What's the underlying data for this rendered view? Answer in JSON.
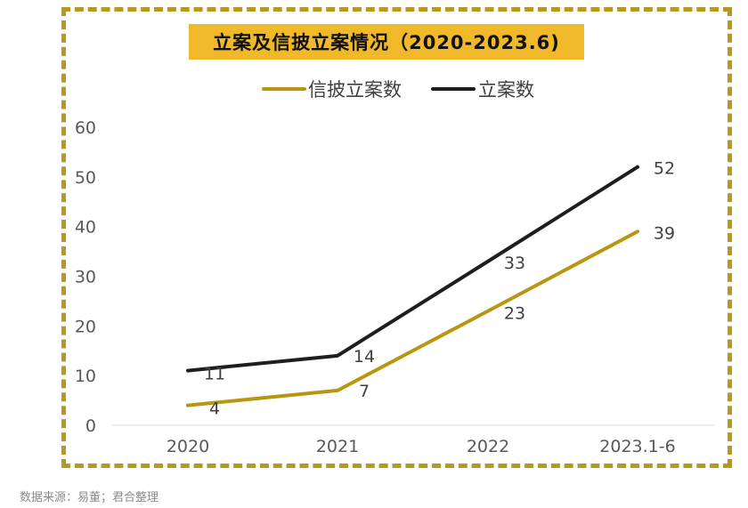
{
  "colors": {
    "frame": "#b8981e",
    "title_bg": "#f0b92a",
    "line_disclosure": "#b8960f",
    "line_total": "#1e1e1e",
    "axis_text": "#595959",
    "label_text": "#404040"
  },
  "chart_data": {
    "type": "line",
    "title": "立案及信披立案情况（2020-2023.6)",
    "categories": [
      "2020",
      "2021",
      "2022",
      "2023.1-6"
    ],
    "series": [
      {
        "name": "信披立案数",
        "values": [
          4,
          7,
          23,
          39
        ]
      },
      {
        "name": "立案数",
        "values": [
          11,
          14,
          33,
          52
        ]
      }
    ],
    "y_ticks": [
      0,
      10,
      20,
      30,
      40,
      50,
      60
    ],
    "ylim": [
      0,
      60
    ],
    "grid": false,
    "legend": "top-center",
    "xlabel": "",
    "ylabel": ""
  },
  "footer": {
    "source": "数据来源：易董；君合整理"
  }
}
